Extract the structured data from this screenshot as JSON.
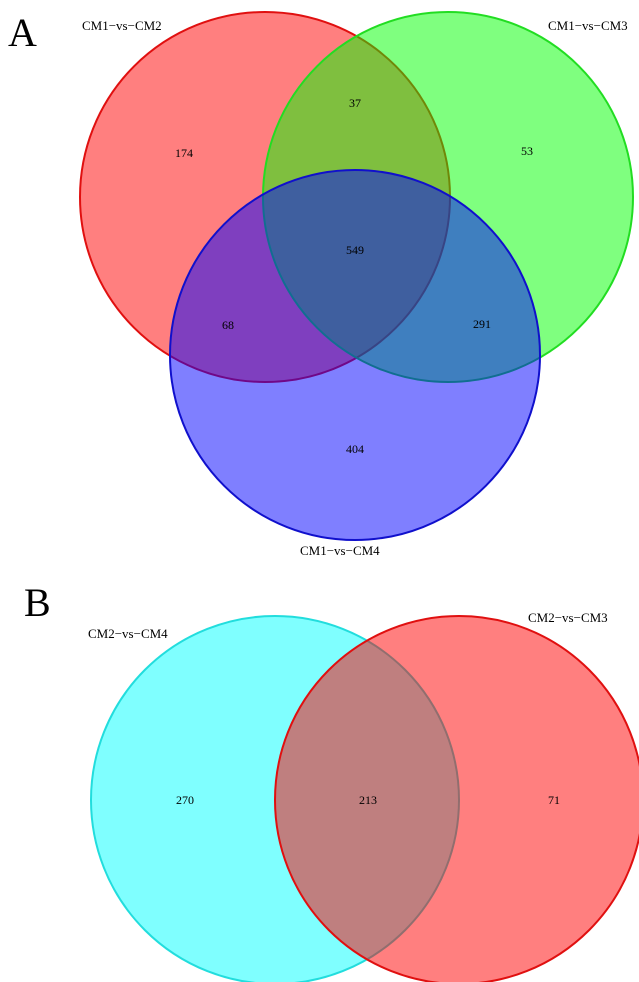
{
  "panels": {
    "a": {
      "letter": "A",
      "sets": [
        {
          "name": "CM1−vs−CM2",
          "fill": "#ff0000",
          "stroke": "#e01010"
        },
        {
          "name": "CM1−vs−CM3",
          "fill": "#00ff00",
          "stroke": "#22dd22"
        },
        {
          "name": "CM1−vs−CM4",
          "fill": "#0000ff",
          "stroke": "#1010cc"
        }
      ],
      "counts": {
        "only_cm2": "174",
        "cm2_cm3": "37",
        "only_cm3": "53",
        "all_three": "549",
        "cm2_cm4": "68",
        "cm3_cm4": "291",
        "only_cm4": "404"
      }
    },
    "b": {
      "letter": "B",
      "sets": [
        {
          "name": "CM2−vs−CM4",
          "fill": "#00ffff",
          "stroke": "#22dddd"
        },
        {
          "name": "CM2−vs−CM3",
          "fill": "#ff0000",
          "stroke": "#e01010"
        }
      ],
      "counts": {
        "only_cm4": "270",
        "both": "213",
        "only_cm3": "71"
      }
    }
  }
}
